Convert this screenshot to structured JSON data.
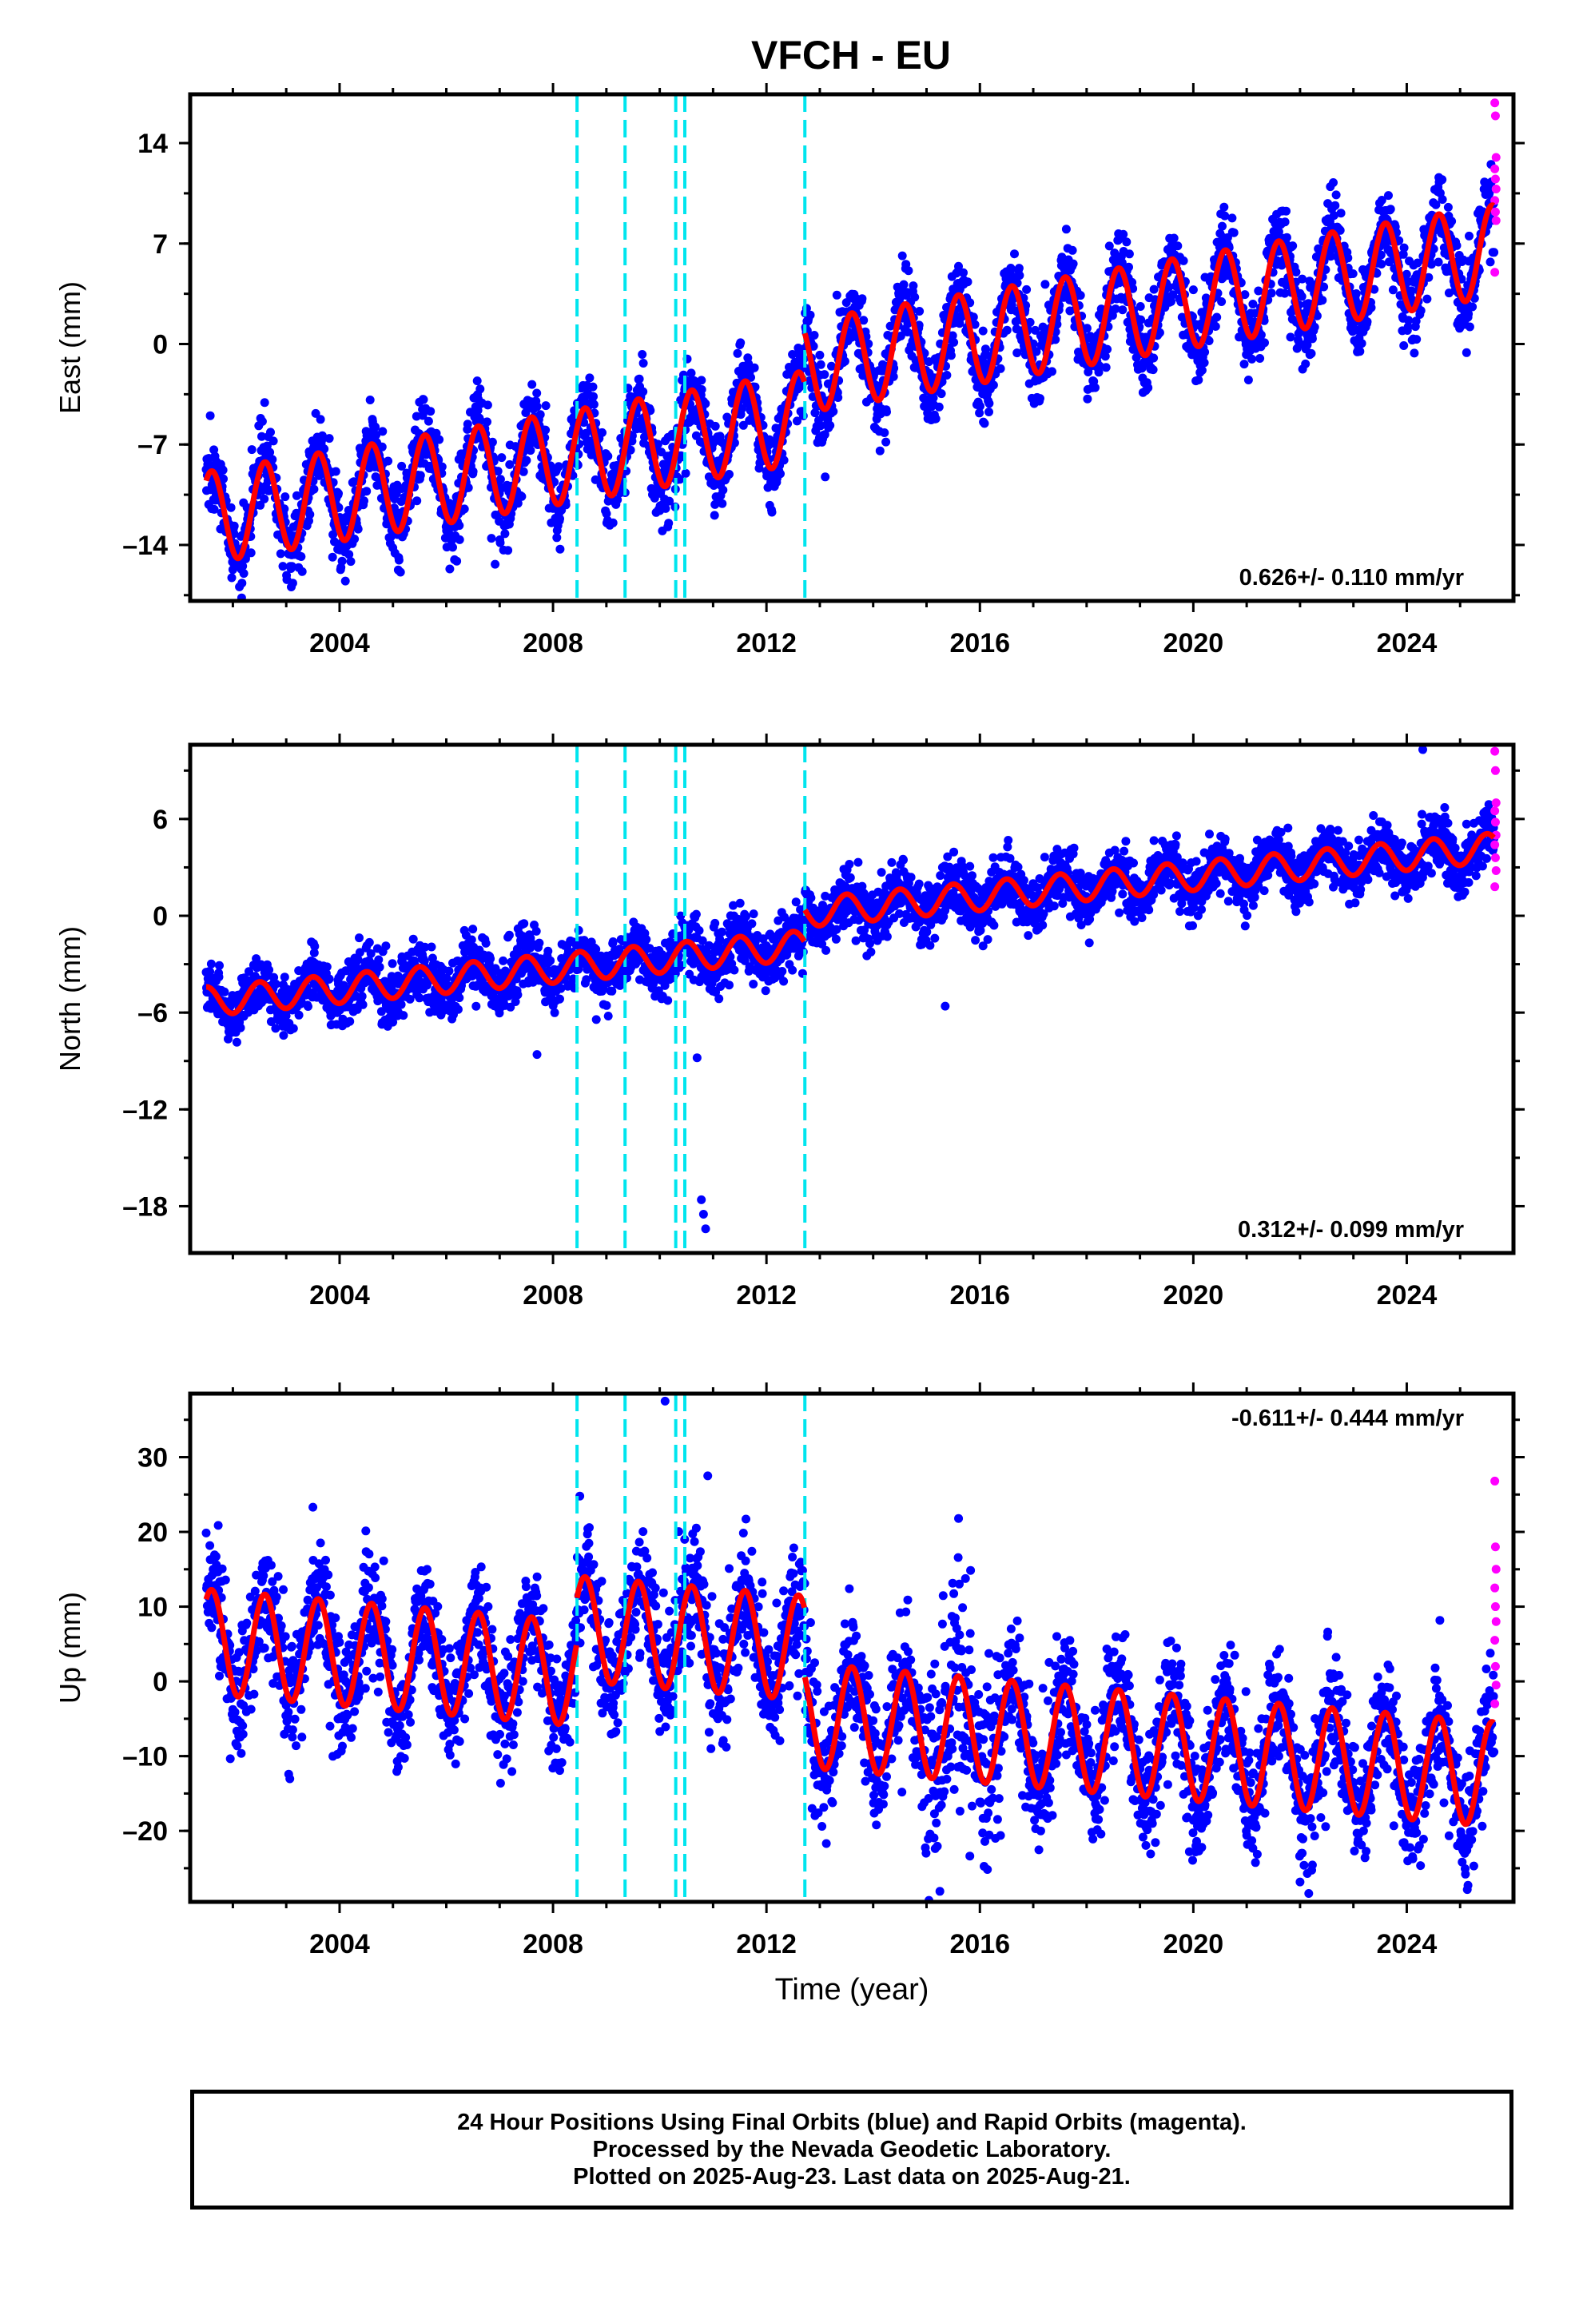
{
  "title": "VFCH - EU",
  "colors": {
    "final_orbits": "#0000ff",
    "rapid_orbits": "#ff00ff",
    "model": "#ff0000",
    "event_lines": "#00e5ee",
    "frame": "#000000"
  },
  "footer": {
    "line1": "24 Hour Positions Using Final Orbits (blue) and Rapid Orbits (magenta).",
    "line2": "Processed by the Nevada Geodetic Laboratory.",
    "line3": "Plotted on 2025-Aug-23. Last data on 2025-Aug-21."
  },
  "chart_data": [
    {
      "type": "scatter",
      "panel": "east",
      "ylabel": "East (mm)",
      "xlabel": "",
      "velocity_label": "0.626+/- 0.110 mm/yr",
      "xlim": [
        2001.2,
        2026.0
      ],
      "ylim": [
        -17.9,
        17.4
      ],
      "xticks": [
        2004,
        2008,
        2012,
        2016,
        2020,
        2024
      ],
      "yticks": [
        -14,
        -7,
        0,
        7,
        14
      ],
      "event_lines": [
        2008.45,
        2009.35,
        2010.3,
        2010.47,
        2012.72
      ],
      "offsets": [
        {
          "year": 2012.72,
          "jump": 3.5
        }
      ],
      "x_start": 2001.5,
      "x_end": 2025.64,
      "model": {
        "intercept": -12.3,
        "slope": 0.626,
        "annual_amplitude": 3.2,
        "peak_phase": 0.6
      },
      "data_noise": 1.4,
      "rapid_orbit_values": [
        16.8,
        15.9,
        13.0,
        12.2,
        11.5,
        10.8,
        10.0,
        9.2,
        8.6,
        5.0
      ]
    },
    {
      "type": "scatter",
      "panel": "north",
      "ylabel": "North (mm)",
      "xlabel": "",
      "velocity_label": "0.312+/- 0.099 mm/yr",
      "xlim": [
        2001.2,
        2026.0
      ],
      "ylim": [
        -20.9,
        10.6
      ],
      "xticks": [
        2004,
        2008,
        2012,
        2016,
        2020,
        2024
      ],
      "yticks": [
        -18,
        -12,
        -6,
        0,
        6
      ],
      "event_lines": [
        2008.45,
        2009.35,
        2010.3,
        2010.47,
        2012.72
      ],
      "offsets": [
        {
          "year": 2012.72,
          "jump": 2.0
        }
      ],
      "x_start": 2001.5,
      "x_end": 2025.64,
      "model": {
        "intercept": -5.4,
        "slope": 0.312,
        "annual_amplitude": 0.9,
        "peak_phase": 0.5
      },
      "data_noise": 0.9,
      "outliers": [
        [
          2010.78,
          -17.6
        ],
        [
          2010.82,
          -18.5
        ],
        [
          2010.86,
          -19.4
        ],
        [
          2010.7,
          -8.8
        ],
        [
          2015.35,
          -5.6
        ],
        [
          2024.3,
          10.3
        ],
        [
          2007.7,
          -8.6
        ]
      ],
      "rapid_orbit_values": [
        10.2,
        9.0,
        7.0,
        6.5,
        5.8,
        5.0,
        4.4,
        3.6,
        2.8,
        1.8
      ]
    },
    {
      "type": "scatter",
      "panel": "up",
      "ylabel": "Up (mm)",
      "xlabel": "Time (year)",
      "velocity_label": "-0.611+/- 0.444 mm/yr",
      "xlim": [
        2001.2,
        2026.0
      ],
      "ylim": [
        -29.5,
        38.5
      ],
      "xticks": [
        2004,
        2008,
        2012,
        2016,
        2020,
        2024
      ],
      "yticks": [
        -20,
        -10,
        0,
        10,
        20,
        30
      ],
      "event_lines": [
        2008.45,
        2009.35,
        2010.3,
        2010.47,
        2012.72
      ],
      "offsets": [
        {
          "year": 2008.45,
          "jump": 6.0
        },
        {
          "year": 2012.72,
          "jump": -9.0
        }
      ],
      "x_start": 2001.5,
      "x_end": 2025.64,
      "model": {
        "intercept": 5.5,
        "slope": -0.611,
        "annual_amplitude": 7.0,
        "peak_phase": 0.6
      },
      "data_noise": 4.0,
      "outliers": [
        [
          2010.1,
          37.5
        ],
        [
          2015.6,
          21.8
        ],
        [
          2010.9,
          27.5
        ],
        [
          2003.5,
          23.3
        ]
      ],
      "rapid_orbit_values": [
        26.8,
        18.0,
        15.0,
        12.5,
        10.0,
        8.0,
        5.5,
        2.0,
        -0.5,
        -3.0
      ]
    }
  ]
}
